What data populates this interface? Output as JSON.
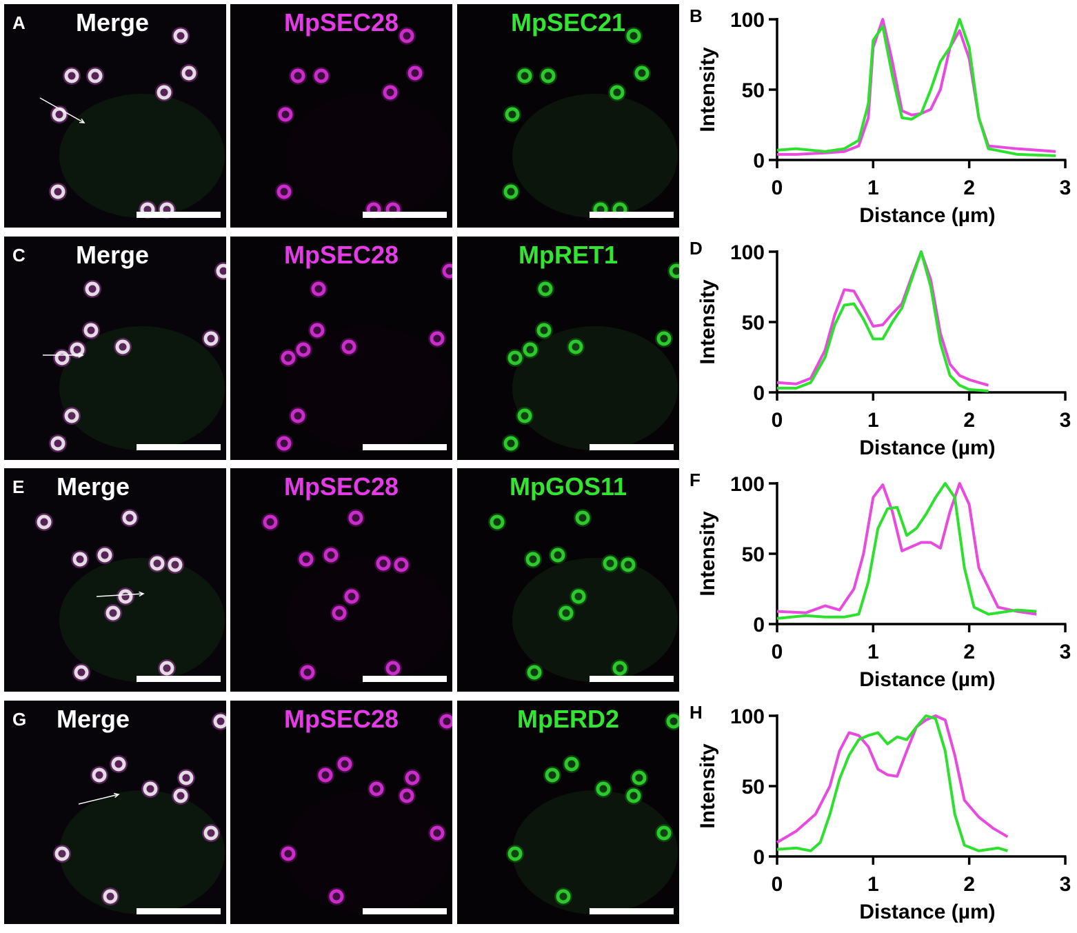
{
  "panels": [
    {
      "merge_letter": "A",
      "merge_label": "Merge",
      "mag_label": "MpSEC28",
      "green_label": "MpSEC21",
      "plot_letter": "B",
      "chart_data": {
        "type": "line",
        "xlabel": "Distance (µm)",
        "ylabel": "Intensity",
        "xlim": [
          0,
          3
        ],
        "ylim": [
          0,
          100
        ],
        "xticks": [
          "0",
          "1",
          "2",
          "3"
        ],
        "yticks": [
          "0",
          "50",
          "100"
        ],
        "series": [
          {
            "color": "#e84ae0",
            "x": [
              0,
              0.2,
              0.5,
              0.7,
              0.85,
              0.95,
              1.0,
              1.1,
              1.2,
              1.3,
              1.4,
              1.5,
              1.6,
              1.7,
              1.8,
              1.9,
              2.0,
              2.1,
              2.2,
              2.5,
              2.9
            ],
            "y": [
              4,
              4,
              5,
              6,
              10,
              30,
              80,
              100,
              70,
              35,
              32,
              33,
              36,
              50,
              80,
              92,
              72,
              30,
              10,
              8,
              6
            ]
          },
          {
            "color": "#2ee02e",
            "x": [
              0,
              0.2,
              0.5,
              0.7,
              0.85,
              0.95,
              1.0,
              1.1,
              1.2,
              1.3,
              1.4,
              1.5,
              1.6,
              1.7,
              1.8,
              1.9,
              2.0,
              2.1,
              2.2,
              2.5,
              2.9
            ],
            "y": [
              7,
              8,
              6,
              8,
              14,
              40,
              85,
              95,
              60,
              30,
              29,
              33,
              50,
              70,
              80,
              100,
              80,
              30,
              8,
              4,
              3
            ]
          }
        ]
      }
    },
    {
      "merge_letter": "C",
      "merge_label": "Merge",
      "mag_label": "MpSEC28",
      "green_label": "MpRET1",
      "plot_letter": "D",
      "chart_data": {
        "type": "line",
        "xlabel": "Distance (µm)",
        "ylabel": "Intensity",
        "xlim": [
          0,
          3
        ],
        "ylim": [
          0,
          100
        ],
        "xticks": [
          "0",
          "1",
          "2",
          "3"
        ],
        "yticks": [
          "0",
          "50",
          "100"
        ],
        "series": [
          {
            "color": "#e84ae0",
            "x": [
              0,
              0.2,
              0.35,
              0.5,
              0.6,
              0.7,
              0.8,
              0.9,
              1.0,
              1.1,
              1.2,
              1.3,
              1.4,
              1.5,
              1.6,
              1.7,
              1.8,
              1.9,
              2.0,
              2.2
            ],
            "y": [
              7,
              6,
              10,
              30,
              55,
              73,
              72,
              60,
              47,
              48,
              56,
              63,
              82,
              100,
              80,
              42,
              20,
              12,
              9,
              5
            ]
          },
          {
            "color": "#2ee02e",
            "x": [
              0,
              0.2,
              0.35,
              0.5,
              0.6,
              0.7,
              0.8,
              0.9,
              1.0,
              1.1,
              1.2,
              1.3,
              1.4,
              1.5,
              1.6,
              1.7,
              1.8,
              1.9,
              2.0,
              2.2
            ],
            "y": [
              3,
              3,
              7,
              25,
              48,
              62,
              63,
              52,
              38,
              38,
              50,
              60,
              80,
              100,
              75,
              35,
              12,
              5,
              2,
              1
            ]
          }
        ]
      }
    },
    {
      "merge_letter": "E",
      "merge_label": "Merge",
      "mag_label": "MpSEC28",
      "green_label": "MpGOS11",
      "plot_letter": "F",
      "chart_data": {
        "type": "line",
        "xlabel": "Distance (µm)",
        "ylabel": "Intensity",
        "xlim": [
          0,
          3
        ],
        "ylim": [
          0,
          100
        ],
        "xticks": [
          "0",
          "1",
          "2",
          "3"
        ],
        "yticks": [
          "0",
          "50",
          "100"
        ],
        "series": [
          {
            "color": "#e84ae0",
            "x": [
              0,
              0.3,
              0.5,
              0.65,
              0.8,
              0.9,
              1.0,
              1.1,
              1.2,
              1.3,
              1.4,
              1.5,
              1.6,
              1.7,
              1.8,
              1.9,
              2.0,
              2.1,
              2.3,
              2.5,
              2.7
            ],
            "y": [
              9,
              8,
              13,
              10,
              25,
              50,
              90,
              99,
              80,
              52,
              55,
              58,
              58,
              54,
              80,
              100,
              85,
              40,
              12,
              9,
              7
            ]
          },
          {
            "color": "#2ee02e",
            "x": [
              0,
              0.3,
              0.5,
              0.7,
              0.85,
              0.95,
              1.05,
              1.15,
              1.25,
              1.35,
              1.45,
              1.55,
              1.65,
              1.75,
              1.85,
              1.95,
              2.05,
              2.2,
              2.5,
              2.7
            ],
            "y": [
              4,
              6,
              5,
              5,
              7,
              30,
              68,
              82,
              83,
              63,
              68,
              78,
              90,
              100,
              90,
              40,
              12,
              7,
              10,
              9
            ]
          }
        ]
      }
    },
    {
      "merge_letter": "G",
      "merge_label": "Merge",
      "mag_label": "MpSEC28",
      "green_label": "MpERD2",
      "plot_letter": "H",
      "chart_data": {
        "type": "line",
        "xlabel": "Distance (µm)",
        "ylabel": "Intensity",
        "xlim": [
          0,
          3
        ],
        "ylim": [
          0,
          100
        ],
        "xticks": [
          "0",
          "1",
          "2",
          "3"
        ],
        "yticks": [
          "0",
          "50",
          "100"
        ],
        "series": [
          {
            "color": "#e84ae0",
            "x": [
              0,
              0.2,
              0.4,
              0.55,
              0.65,
              0.75,
              0.85,
              0.95,
              1.05,
              1.15,
              1.25,
              1.35,
              1.45,
              1.55,
              1.65,
              1.75,
              1.85,
              1.95,
              2.1,
              2.25,
              2.4
            ],
            "y": [
              10,
              18,
              30,
              50,
              75,
              88,
              86,
              78,
              62,
              58,
              57,
              75,
              92,
              97,
              100,
              97,
              72,
              40,
              28,
              20,
              14
            ]
          },
          {
            "color": "#2ee02e",
            "x": [
              0,
              0.2,
              0.35,
              0.45,
              0.55,
              0.65,
              0.75,
              0.85,
              0.95,
              1.05,
              1.15,
              1.25,
              1.35,
              1.45,
              1.55,
              1.65,
              1.75,
              1.85,
              1.95,
              2.1,
              2.3,
              2.4
            ],
            "y": [
              5,
              6,
              4,
              10,
              30,
              55,
              72,
              83,
              86,
              88,
              80,
              85,
              83,
              92,
              100,
              98,
              75,
              30,
              8,
              4,
              6,
              4
            ]
          }
        ]
      }
    }
  ]
}
